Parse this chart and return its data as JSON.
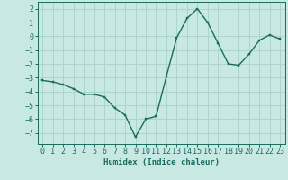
{
  "x": [
    0,
    1,
    2,
    3,
    4,
    5,
    6,
    7,
    8,
    9,
    10,
    11,
    12,
    13,
    14,
    15,
    16,
    17,
    18,
    19,
    20,
    21,
    22,
    23
  ],
  "y": [
    -3.2,
    -3.3,
    -3.5,
    -3.8,
    -4.2,
    -4.2,
    -4.4,
    -5.2,
    -5.7,
    -7.3,
    -6.0,
    -5.8,
    -2.9,
    -0.1,
    1.3,
    2.0,
    1.0,
    -0.5,
    -2.0,
    -2.1,
    -1.3,
    -0.3,
    0.1,
    -0.2
  ],
  "line_color": "#1a6b5e",
  "marker_color": "#1a6b5e",
  "bg_color": "#c8e8e3",
  "grid_color": "#aed4ce",
  "xlabel": "Humidex (Indice chaleur)",
  "xlabel_fontsize": 6.5,
  "tick_fontsize": 6,
  "ylim": [
    -7.8,
    2.5
  ],
  "yticks": [
    -7,
    -6,
    -5,
    -4,
    -3,
    -2,
    -1,
    0,
    1,
    2
  ],
  "xticks": [
    0,
    1,
    2,
    3,
    4,
    5,
    6,
    7,
    8,
    9,
    10,
    11,
    12,
    13,
    14,
    15,
    16,
    17,
    18,
    19,
    20,
    21,
    22,
    23
  ],
  "linewidth": 1.0,
  "markersize": 2.0
}
